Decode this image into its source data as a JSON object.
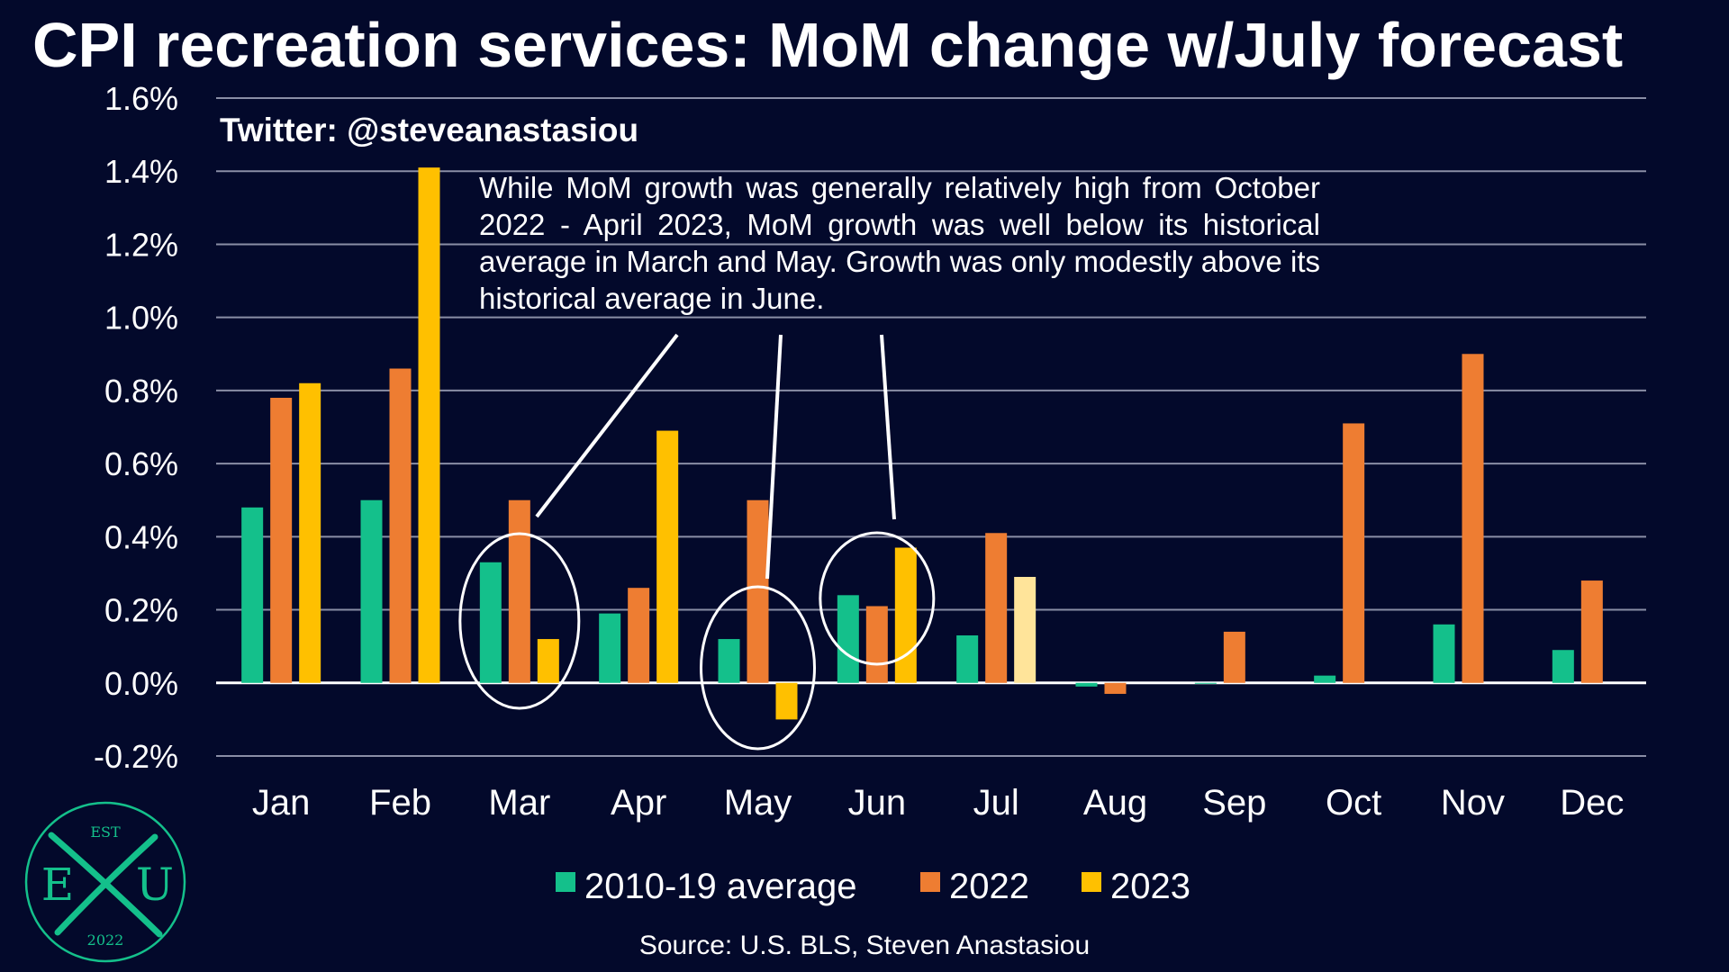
{
  "title": "CPI recreation services: MoM change w/July forecast",
  "handle": "Twitter: @steveanastasiou",
  "annotation": "While MoM growth was generally relatively high from October 2022 - April 2023, MoM growth was well below its historical average in March and May. Growth was only modestly above its historical average in June.",
  "source": "Source: U.S. BLS, Steven Anastasiou",
  "logo": {
    "top": "EST",
    "left": "E",
    "right": "U",
    "bottom": "2022"
  },
  "colors": {
    "background": "#03092b",
    "avg": "#14c08b",
    "y2022": "#ee7d32",
    "y2023": "#ffc000",
    "forecast": "#ffe49a",
    "grid": "#8a8ea6",
    "logo": "#14c08b"
  },
  "chart_data": {
    "type": "bar",
    "categories": [
      "Jan",
      "Feb",
      "Mar",
      "Apr",
      "May",
      "Jun",
      "Jul",
      "Aug",
      "Sep",
      "Oct",
      "Nov",
      "Dec"
    ],
    "series": [
      {
        "name": "2010-19 average",
        "color": "#14c08b",
        "values": [
          0.48,
          0.5,
          0.33,
          0.19,
          0.12,
          0.24,
          0.13,
          -0.01,
          0.0,
          0.02,
          0.16,
          0.09
        ]
      },
      {
        "name": "2022",
        "color": "#ee7d32",
        "values": [
          0.78,
          0.86,
          0.5,
          0.26,
          0.5,
          0.21,
          0.41,
          -0.03,
          0.14,
          0.71,
          0.9,
          0.28
        ]
      },
      {
        "name": "2023",
        "color": "#ffc000",
        "forecast_color": "#ffe49a",
        "forecast_categories": [
          "Jul"
        ],
        "values": [
          0.82,
          1.41,
          0.12,
          0.69,
          -0.1,
          0.37,
          0.29,
          null,
          null,
          null,
          null,
          null
        ]
      }
    ],
    "ylim": [
      -0.2,
      1.6
    ],
    "yticks": [
      -0.2,
      0.0,
      0.2,
      0.4,
      0.6,
      0.8,
      1.0,
      1.2,
      1.4,
      1.6
    ],
    "ytick_labels": [
      "-0.2%",
      "0.0%",
      "0.2%",
      "0.4%",
      "0.6%",
      "0.8%",
      "1.0%",
      "1.2%",
      "1.4%",
      "1.6%"
    ],
    "grid": true,
    "legend_position": "bottom",
    "circled_categories": [
      "Mar",
      "May",
      "Jun"
    ],
    "title": "CPI recreation services: MoM change w/July forecast",
    "xlabel": "",
    "ylabel": ""
  }
}
